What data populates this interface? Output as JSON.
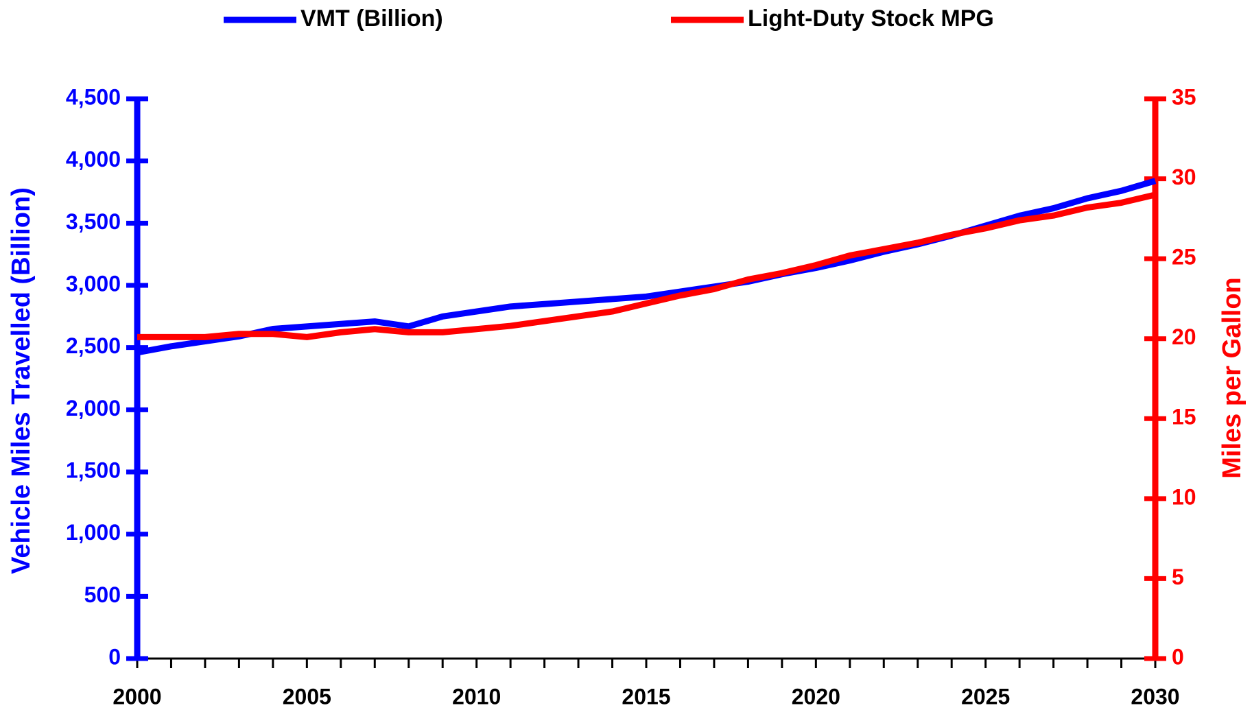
{
  "chart_data": {
    "type": "line",
    "x": [
      2000,
      2001,
      2002,
      2003,
      2004,
      2005,
      2006,
      2007,
      2008,
      2009,
      2010,
      2011,
      2012,
      2013,
      2014,
      2015,
      2016,
      2017,
      2018,
      2019,
      2020,
      2021,
      2022,
      2023,
      2024,
      2025,
      2026,
      2027,
      2028,
      2029,
      2030
    ],
    "xlim": [
      2000,
      2030
    ],
    "xticks": [
      2000,
      2005,
      2010,
      2015,
      2020,
      2025,
      2030
    ],
    "y_label": "Vehicle Miles Travelled (Billion)",
    "y2_label": "Miles per Gallon",
    "ylim": [
      0,
      4500
    ],
    "yticks": [
      0,
      500,
      {
        "value": 1000,
        "label": "1,000"
      },
      {
        "value": 1500,
        "label": "1,500"
      },
      {
        "value": 2000,
        "label": "2,000"
      },
      {
        "value": 2500,
        "label": "2,500"
      },
      {
        "value": 3000,
        "label": "3,000"
      },
      {
        "value": 3500,
        "label": "3,500"
      },
      {
        "value": 4000,
        "label": "4,000"
      },
      {
        "value": 4500,
        "label": "4,500"
      }
    ],
    "y2lim": [
      0,
      35
    ],
    "y2ticks": [
      0,
      5,
      10,
      15,
      20,
      25,
      30,
      35
    ],
    "series": [
      {
        "name": "VMT (Billion)",
        "color": "#0000ff",
        "values": [
          2460,
          2510,
          2550,
          2590,
          2650,
          2670,
          2690,
          2710,
          2670,
          2750,
          2790,
          2830,
          2850,
          2870,
          2890,
          2910,
          2950,
          2990,
          3030,
          3090,
          3140,
          3200,
          3270,
          3330,
          3400,
          3480,
          3560,
          3620,
          3700,
          3760,
          3840
        ]
      },
      {
        "name": "Light-Duty Stock MPG",
        "color": "#ff0000",
        "axis": "y2",
        "values": [
          20.1,
          20.1,
          20.1,
          20.3,
          20.3,
          20.1,
          20.4,
          20.6,
          20.4,
          20.4,
          20.6,
          20.8,
          21.1,
          21.4,
          21.7,
          22.2,
          22.7,
          23.1,
          23.7,
          24.1,
          24.6,
          25.2,
          25.6,
          26.0,
          26.5,
          26.9,
          27.4,
          27.7,
          28.2,
          28.5,
          29.0
        ]
      }
    ]
  }
}
